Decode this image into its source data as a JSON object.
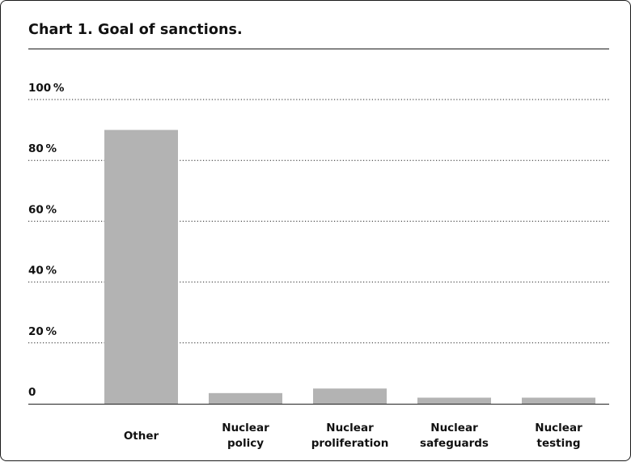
{
  "chart_data": {
    "type": "bar",
    "title": "Chart 1. Goal of sanctions.",
    "categories": [
      [
        "Other"
      ],
      [
        "Nuclear",
        "policy"
      ],
      [
        "Nuclear",
        "proliferation"
      ],
      [
        "Nuclear",
        "safeguards"
      ],
      [
        "Nuclear",
        "testing"
      ]
    ],
    "values": [
      90,
      3.5,
      5,
      2,
      2
    ],
    "unit": "%",
    "ylim": [
      0,
      100
    ],
    "yticks": [
      0,
      20,
      40,
      60,
      80,
      100
    ],
    "ytick_labels": [
      "0",
      "20 %",
      "40 %",
      "60 %",
      "80 %",
      "100 %"
    ],
    "xlabel": "",
    "ylabel": "",
    "grid": "horizontal dotted",
    "legend": "none",
    "colors": {
      "bar": "#b3b3b3",
      "grid": "#222222",
      "axis": "#222222",
      "text": "#111111"
    }
  }
}
